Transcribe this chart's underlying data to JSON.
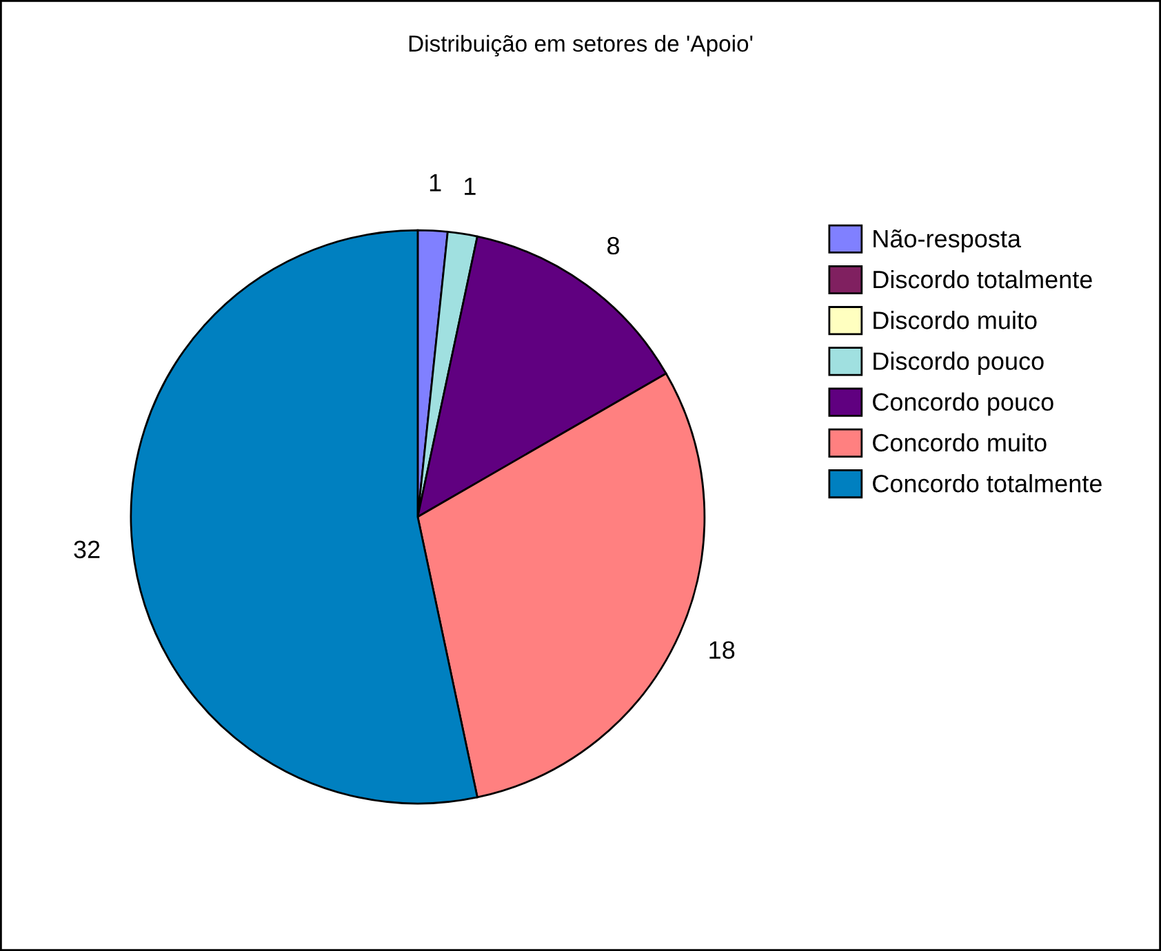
{
  "chart_data": {
    "type": "pie",
    "title": "Distribuição em setores de 'Apoio'",
    "categories": [
      "Não-resposta",
      "Discordo totalmente",
      "Discordo muito",
      "Discordo pouco",
      "Concordo pouco",
      "Concordo muito",
      "Concordo totalmente"
    ],
    "values": [
      1,
      0,
      0,
      1,
      8,
      18,
      32
    ],
    "colors": [
      "#8080ff",
      "#802060",
      "#ffffc0",
      "#a0e0e0",
      "#600080",
      "#ff8080",
      "#0080c0"
    ],
    "value_labels": [
      "1",
      null,
      null,
      "1",
      "8",
      "18",
      "32"
    ],
    "legend": "right"
  }
}
